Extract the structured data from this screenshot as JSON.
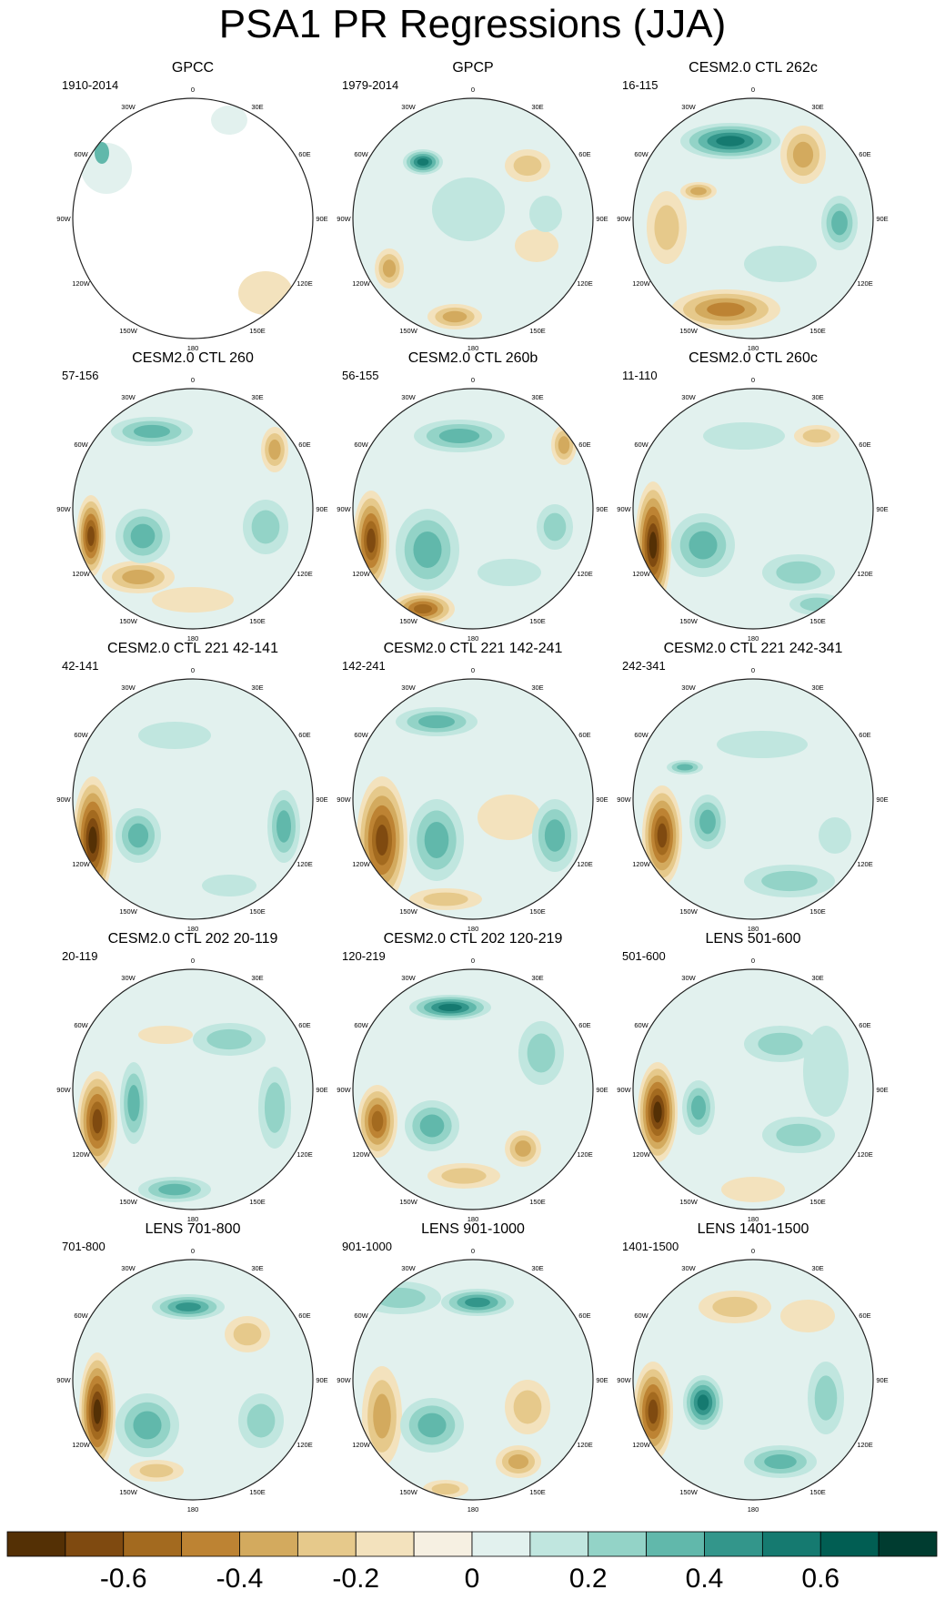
{
  "title": "PSA1 PR Regressions (JJA)",
  "chart_data": {
    "type": "heatmap",
    "projection": "south polar stereographic",
    "longitude_labels": [
      "0",
      "30E",
      "60E",
      "90E",
      "120E",
      "150E",
      "180",
      "150W",
      "120W",
      "90W",
      "60W",
      "30W"
    ],
    "panels": [
      {
        "title": "GPCC",
        "period": "1910-2014"
      },
      {
        "title": "GPCP",
        "period": "1979-2014"
      },
      {
        "title": "CESM2.0 CTL 262c",
        "period": "16-115"
      },
      {
        "title": "CESM2.0 CTL 260",
        "period": "57-156"
      },
      {
        "title": "CESM2.0 CTL 260b",
        "period": "56-155"
      },
      {
        "title": "CESM2.0 CTL 260c",
        "period": "11-110"
      },
      {
        "title": "CESM2.0 CTL 221 42-141",
        "period": "42-141"
      },
      {
        "title": "CESM2.0 CTL 221 142-241",
        "period": "142-241"
      },
      {
        "title": "CESM2.0 CTL 221 242-341",
        "period": "242-341"
      },
      {
        "title": "CESM2.0 CTL 202 20-119",
        "period": "20-119"
      },
      {
        "title": "CESM2.0 CTL 202 120-219",
        "period": "120-219"
      },
      {
        "title": "LENS 501-600",
        "period": "501-600"
      },
      {
        "title": "LENS 701-800",
        "period": "701-800"
      },
      {
        "title": "LENS 901-1000",
        "period": "901-1000"
      },
      {
        "title": "LENS 1401-1500",
        "period": "1401-1500"
      }
    ],
    "colorbar": {
      "levels": [
        -0.7,
        -0.6,
        -0.5,
        -0.4,
        -0.3,
        -0.2,
        -0.1,
        0,
        0.1,
        0.2,
        0.3,
        0.4,
        0.5,
        0.6,
        0.7
      ],
      "colors": [
        "#543005",
        "#7f4a10",
        "#a36a1f",
        "#bd8333",
        "#d3aa5e",
        "#e6c98b",
        "#f3e2bd",
        "#f6f0e2",
        "#e2f1ee",
        "#c0e6df",
        "#93d3c7",
        "#61b8ab",
        "#33968b",
        "#157a70",
        "#015e53",
        "#003c30"
      ],
      "tick_labels": [
        "-0.6",
        "-0.4",
        "-0.2",
        "0",
        "0.2",
        "0.4",
        "0.6"
      ],
      "tick_values": [
        -0.6,
        -0.4,
        -0.2,
        0,
        0.2,
        0.4,
        0.6
      ]
    }
  }
}
